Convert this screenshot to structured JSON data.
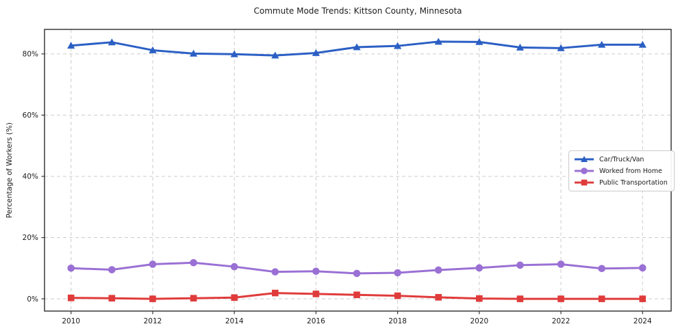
{
  "chart_data": {
    "type": "line",
    "title": "Commute Mode Trends: Kittson County, Minnesota",
    "xlabel": "",
    "ylabel": "Percentage of Workers (%)",
    "x": [
      2010,
      2011,
      2012,
      2013,
      2014,
      2015,
      2016,
      2017,
      2018,
      2019,
      2020,
      2021,
      2022,
      2023,
      2024
    ],
    "series": [
      {
        "name": "Car/Truck/Van",
        "color": "#2b5fc4",
        "marker": "triangle",
        "values": [
          82.7,
          83.8,
          81.2,
          80.1,
          79.9,
          79.5,
          80.3,
          82.2,
          82.6,
          84.0,
          83.9,
          82.1,
          81.9,
          83.0,
          83.0
        ]
      },
      {
        "name": "Worked from Home",
        "color": "#9a70d4",
        "marker": "circle",
        "values": [
          10.0,
          9.5,
          11.3,
          11.8,
          10.5,
          8.8,
          9.0,
          8.3,
          8.5,
          9.4,
          10.1,
          11.0,
          11.3,
          9.9,
          10.1
        ]
      },
      {
        "name": "Public Transportation",
        "color": "#e03b3b",
        "marker": "square",
        "values": [
          0.3,
          0.2,
          0.0,
          0.2,
          0.4,
          1.9,
          1.6,
          1.3,
          1.0,
          0.5,
          0.1,
          0.0,
          0.0,
          0.0,
          0.0
        ]
      }
    ],
    "x_ticks": [
      2010,
      2012,
      2014,
      2016,
      2018,
      2020,
      2022,
      2024
    ],
    "y_ticks": [
      0,
      20,
      40,
      60,
      80
    ],
    "y_tick_labels": [
      "0%",
      "20%",
      "40%",
      "60%",
      "80%"
    ],
    "xlim": [
      2009.35,
      2024.7
    ],
    "ylim": [
      -4,
      88
    ],
    "grid": true,
    "legend_position": "center-right",
    "colors": {
      "grid": "#cccccc",
      "spine": "#1a1a1a",
      "tick": "#333333",
      "text": "#1a1a1a"
    }
  }
}
